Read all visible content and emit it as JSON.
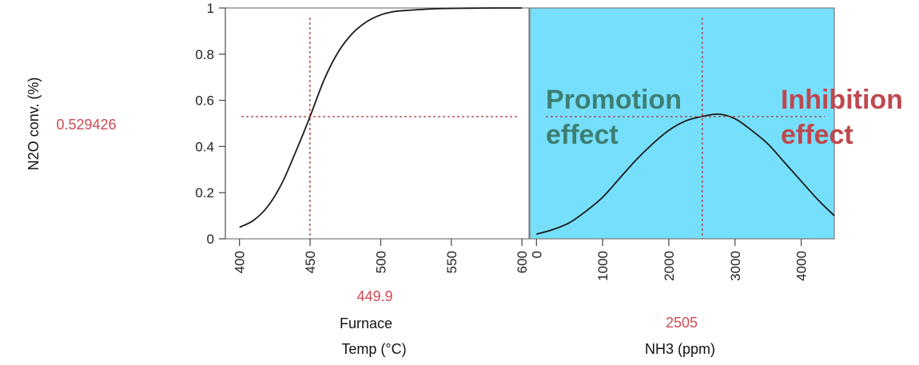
{
  "chart_data": {
    "type": "line",
    "ylabel": "N2O conv. (%)",
    "ylim": [
      0,
      1
    ],
    "yticks": [
      "0",
      "0.2",
      "0.4",
      "0.6",
      "0.8",
      "1"
    ],
    "y_readout": "0.529426",
    "y_current": 0.529426,
    "colors": {
      "curve": "#1a1a1a",
      "crosshair": "#b0303a",
      "readout": "#d04a55",
      "highlight_bg": "#76e0fc",
      "promotion": "#3e7f73",
      "inhibition": "#c0474e",
      "frame": "#7a7a7a"
    },
    "panels": [
      {
        "id": "furnace",
        "xlabel_line1": "Furnace",
        "xlabel_line2": "Temp (°C)",
        "xlim": [
          390,
          605
        ],
        "xticks": [
          "400",
          "450",
          "500",
          "550",
          "600"
        ],
        "x_current": 449.9,
        "x_readout": "449.9",
        "highlighted": false,
        "series": [
          {
            "x": [
              400,
              410,
              420,
              430,
              440,
              450,
              460,
              470,
              480,
              490,
              500,
              510,
              520,
              540,
              560,
              580,
              600
            ],
            "y": [
              0.05,
              0.08,
              0.14,
              0.24,
              0.38,
              0.53,
              0.69,
              0.81,
              0.89,
              0.94,
              0.97,
              0.985,
              0.99,
              0.997,
              0.999,
              1.0,
              1.0
            ]
          }
        ]
      },
      {
        "id": "nh3",
        "xlabel_line1": "",
        "xlabel_line2": "NH3 (ppm)",
        "xlim": [
          -100,
          4500
        ],
        "xticks": [
          "0",
          "1000",
          "2000",
          "3000",
          "4000"
        ],
        "x_current": 2505,
        "x_readout": "2505",
        "highlighted": true,
        "series": [
          {
            "x": [
              0,
              250,
              500,
              750,
              1000,
              1250,
              1500,
              1750,
              2000,
              2250,
              2505,
              2750,
              3000,
              3250,
              3500,
              3750,
              4000,
              4250,
              4500
            ],
            "y": [
              0.02,
              0.04,
              0.07,
              0.12,
              0.18,
              0.26,
              0.34,
              0.41,
              0.47,
              0.51,
              0.53,
              0.54,
              0.52,
              0.47,
              0.41,
              0.33,
              0.25,
              0.17,
              0.1
            ]
          }
        ]
      }
    ],
    "annotations": {
      "promotion": [
        "Promotion",
        "effect"
      ],
      "inhibition": [
        "Inhibition",
        "effect"
      ]
    }
  }
}
